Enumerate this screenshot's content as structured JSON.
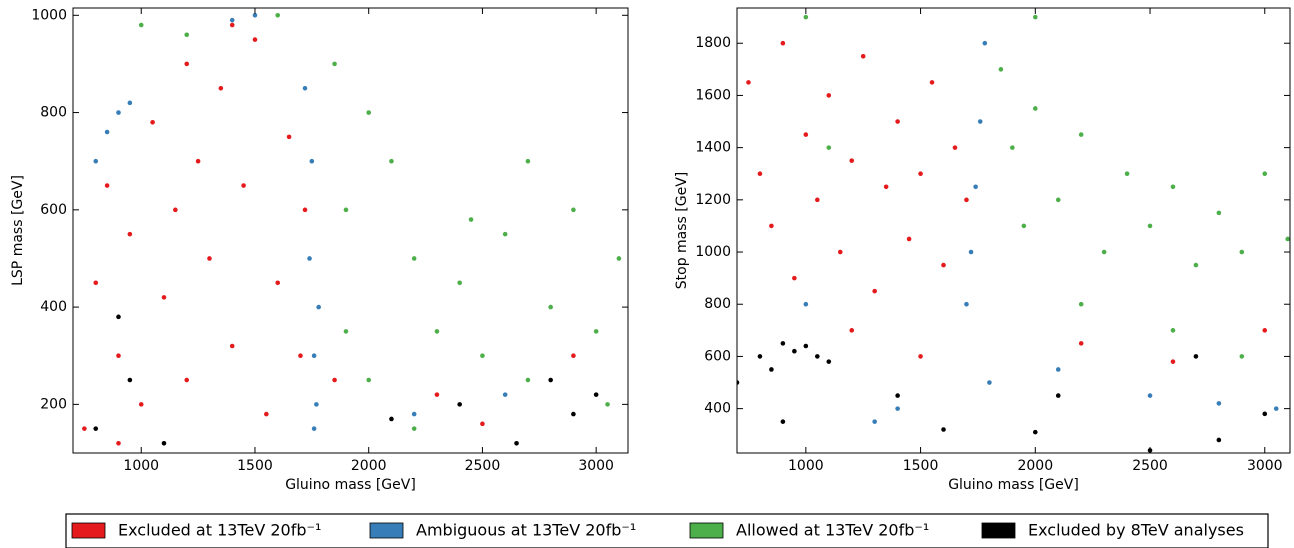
{
  "chart_data": [
    {
      "type": "scatter",
      "x_label": "Gluino mass [GeV]",
      "y_label": "LSP mass [GeV]",
      "xlim": [
        700,
        3140
      ],
      "ylim": [
        100,
        1015
      ],
      "xticks": [
        1000,
        1500,
        2000,
        2500,
        3000
      ],
      "yticks": [
        200,
        400,
        600,
        800,
        1000
      ],
      "grid": false,
      "series": [
        {
          "name": "Excluded at 13TeV 20fb⁻¹",
          "color": "#e41a1c",
          "x": [
            750,
            800,
            850,
            900,
            950,
            1000,
            1050,
            1100,
            1150,
            1200,
            1250,
            1300,
            1350,
            1400,
            1450,
            1500,
            1550,
            1600,
            1650,
            1700,
            1720,
            900,
            1200,
            1400,
            1850,
            2300,
            2500,
            2900
          ],
          "values": [
            150,
            450,
            650,
            300,
            550,
            200,
            780,
            420,
            600,
            250,
            700,
            500,
            850,
            320,
            650,
            950,
            180,
            450,
            750,
            300,
            600,
            120,
            900,
            980,
            250,
            220,
            160,
            300
          ]
        },
        {
          "name": "Ambiguous at 13TeV 20fb⁻¹",
          "color": "#377eb8",
          "x": [
            1740,
            1760,
            1750,
            1770,
            1720,
            1780,
            1500,
            1400,
            900,
            850,
            800,
            950,
            1760,
            2200,
            2600
          ],
          "values": [
            500,
            300,
            700,
            200,
            850,
            400,
            1000,
            990,
            800,
            760,
            700,
            820,
            150,
            180,
            220
          ]
        },
        {
          "name": "Allowed at 13TeV 20fb⁻¹",
          "color": "#4daf4a",
          "x": [
            1000,
            1200,
            1600,
            1850,
            1900,
            2000,
            2100,
            2200,
            2300,
            2400,
            2500,
            2600,
            2700,
            2800,
            2900,
            3000,
            3050,
            2000,
            2200,
            1900,
            2700,
            2450,
            3100
          ],
          "values": [
            980,
            960,
            1000,
            900,
            600,
            800,
            700,
            500,
            350,
            450,
            300,
            550,
            250,
            400,
            600,
            350,
            200,
            250,
            150,
            350,
            700,
            580,
            500
          ]
        },
        {
          "name": "Excluded by 8TeV analyses",
          "color": "#000000",
          "x": [
            900,
            950,
            800,
            1100,
            2100,
            2400,
            2650,
            2900,
            3000,
            2800
          ],
          "values": [
            380,
            250,
            150,
            120,
            170,
            200,
            120,
            180,
            220,
            250
          ]
        }
      ]
    },
    {
      "type": "scatter",
      "x_label": "Gluino mass [GeV]",
      "y_label": "Stop mass [GeV]",
      "xlim": [
        700,
        3110
      ],
      "ylim": [
        230,
        1935
      ],
      "xticks": [
        1000,
        1500,
        2000,
        2500,
        3000
      ],
      "yticks": [
        400,
        600,
        800,
        1000,
        1200,
        1400,
        1600,
        1800
      ],
      "grid": false,
      "series": [
        {
          "name": "Excluded at 13TeV 20fb⁻¹",
          "color": "#e41a1c",
          "x": [
            750,
            800,
            850,
            900,
            950,
            1000,
            1050,
            1100,
            1150,
            1200,
            1250,
            1300,
            1350,
            1400,
            1450,
            1500,
            1550,
            1600,
            1650,
            1700,
            1200,
            1500,
            2200,
            2600,
            3000
          ],
          "values": [
            1650,
            1300,
            1100,
            1800,
            900,
            1450,
            1200,
            1600,
            1000,
            1350,
            1750,
            850,
            1250,
            1500,
            1050,
            1300,
            1650,
            950,
            1400,
            1200,
            700,
            600,
            650,
            580,
            700
          ]
        },
        {
          "name": "Ambiguous at 13TeV 20fb⁻¹",
          "color": "#377eb8",
          "x": [
            1720,
            1760,
            1780,
            1740,
            1700,
            1400,
            1800,
            2100,
            2500,
            2800,
            3050,
            1000,
            1300
          ],
          "values": [
            1000,
            1500,
            1800,
            1250,
            800,
            400,
            500,
            550,
            450,
            420,
            400,
            800,
            350
          ]
        },
        {
          "name": "Allowed at 13TeV 20fb⁻¹",
          "color": "#4daf4a",
          "x": [
            1850,
            1900,
            2000,
            2100,
            2200,
            2300,
            2000,
            1950,
            2400,
            2500,
            2600,
            2700,
            2800,
            2900,
            3000,
            3100,
            2600,
            2200,
            2900,
            1100,
            1000
          ],
          "values": [
            1700,
            1400,
            1550,
            1200,
            1450,
            1000,
            1900,
            1100,
            1300,
            1100,
            1250,
            950,
            1150,
            1000,
            1300,
            1050,
            700,
            800,
            600,
            1400,
            1900
          ]
        },
        {
          "name": "Excluded by 8TeV analyses",
          "color": "#000000",
          "x": [
            800,
            850,
            900,
            950,
            1000,
            1050,
            700,
            900,
            1400,
            1600,
            2000,
            2100,
            2700,
            2800,
            3000,
            2500,
            1100
          ],
          "values": [
            600,
            550,
            650,
            620,
            640,
            600,
            500,
            350,
            450,
            320,
            310,
            450,
            600,
            280,
            380,
            240,
            580
          ]
        }
      ]
    }
  ]
}
